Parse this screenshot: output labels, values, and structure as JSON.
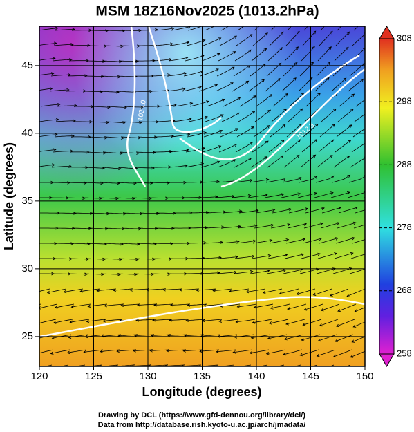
{
  "title": "MSM 18Z16Nov2025 (1013.2hPa)",
  "map": {
    "x_label": "Longitude (degrees)",
    "y_label": "Latitude  (degrees)",
    "xlim": [
      120,
      150
    ],
    "ylim": [
      22.8,
      47.9
    ],
    "xticks": [
      120,
      125,
      130,
      135,
      140,
      145,
      150
    ],
    "yticks": [
      25,
      30,
      35,
      40,
      45
    ],
    "contour_labels": [
      "1020.0",
      "1012.5"
    ]
  },
  "colorbar": {
    "lim": [
      258,
      308
    ],
    "ticks": [
      258,
      268,
      278,
      288,
      298,
      308
    ]
  },
  "credits": [
    "Drawing by DCL (https://www.gfd-dennou.org/library/dcl/)",
    "Data from http://database.rish.kyoto-u.ac.jp/arch/jmadata/"
  ]
}
